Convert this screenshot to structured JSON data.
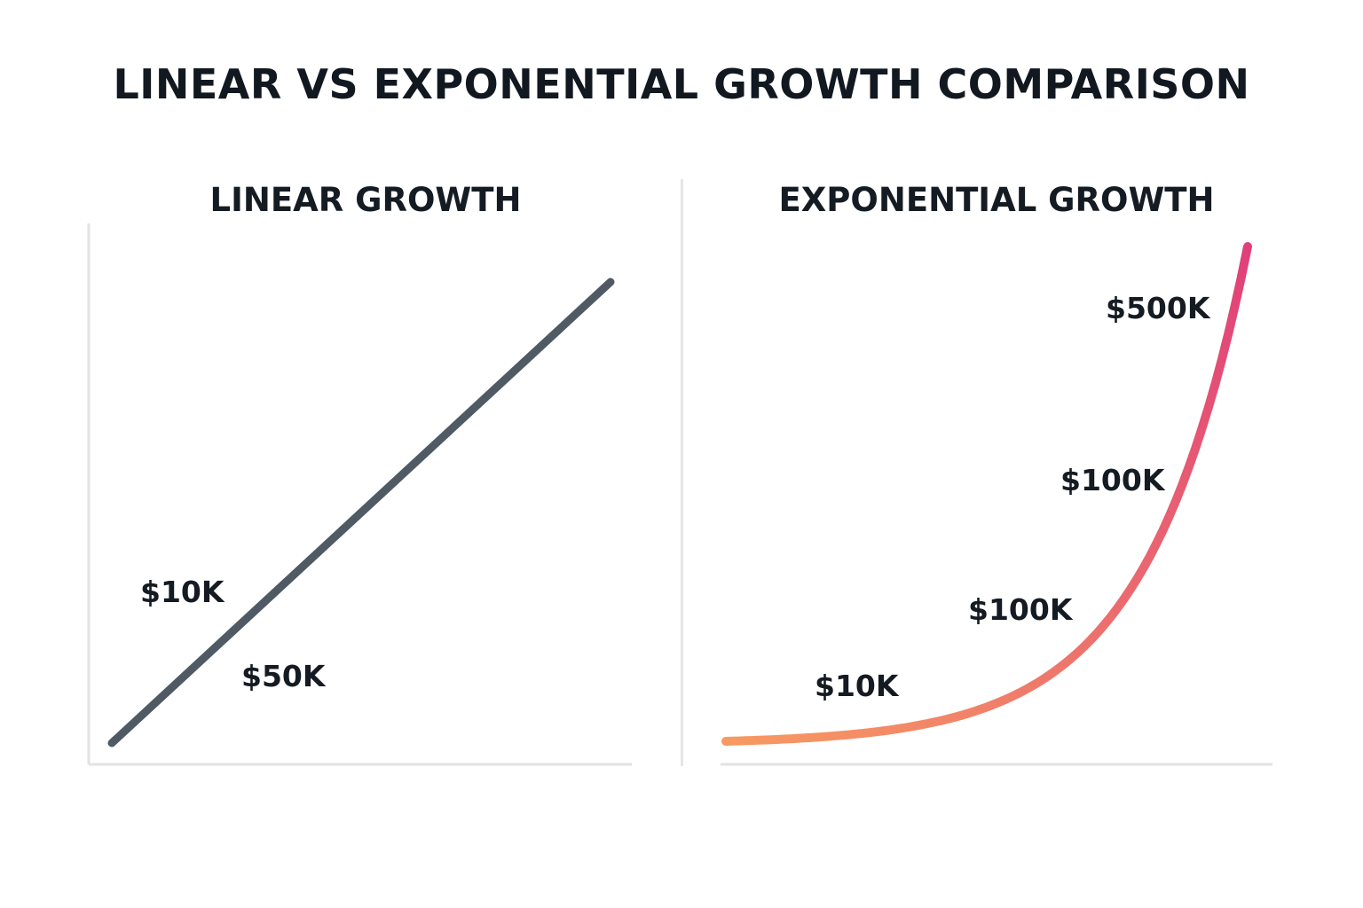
{
  "title": "LINEAR VS EXPONENTIAL GROWTH COMPARISON",
  "colors": {
    "linear_line": "#4f5a64",
    "exp_gradient_start": "#f79a62",
    "exp_gradient_end": "#e0407a",
    "axis": "#e3e3e3",
    "text": "#151b22"
  },
  "chart_data": [
    {
      "type": "line",
      "title": "LINEAR GROWTH",
      "xlabel": "",
      "ylabel": "",
      "grid": false,
      "axes": "left and bottom only, no ticks",
      "shape": "straight line",
      "series": [
        {
          "x": [
            0,
            1
          ],
          "y": [
            0,
            1
          ]
        }
      ],
      "annotations": [
        "$10K",
        "$50K"
      ]
    },
    {
      "type": "line",
      "title": "EXPONENTIAL GROWTH",
      "xlabel": "",
      "ylabel": "",
      "grid": false,
      "axes": "bottom only, no ticks",
      "shape": "exponential curve",
      "series": [
        {
          "x": [
            0,
            1
          ],
          "y": [
            0,
            1
          ]
        }
      ],
      "annotations": [
        "$10K",
        "$100K",
        "$100K",
        "$500K"
      ]
    }
  ]
}
